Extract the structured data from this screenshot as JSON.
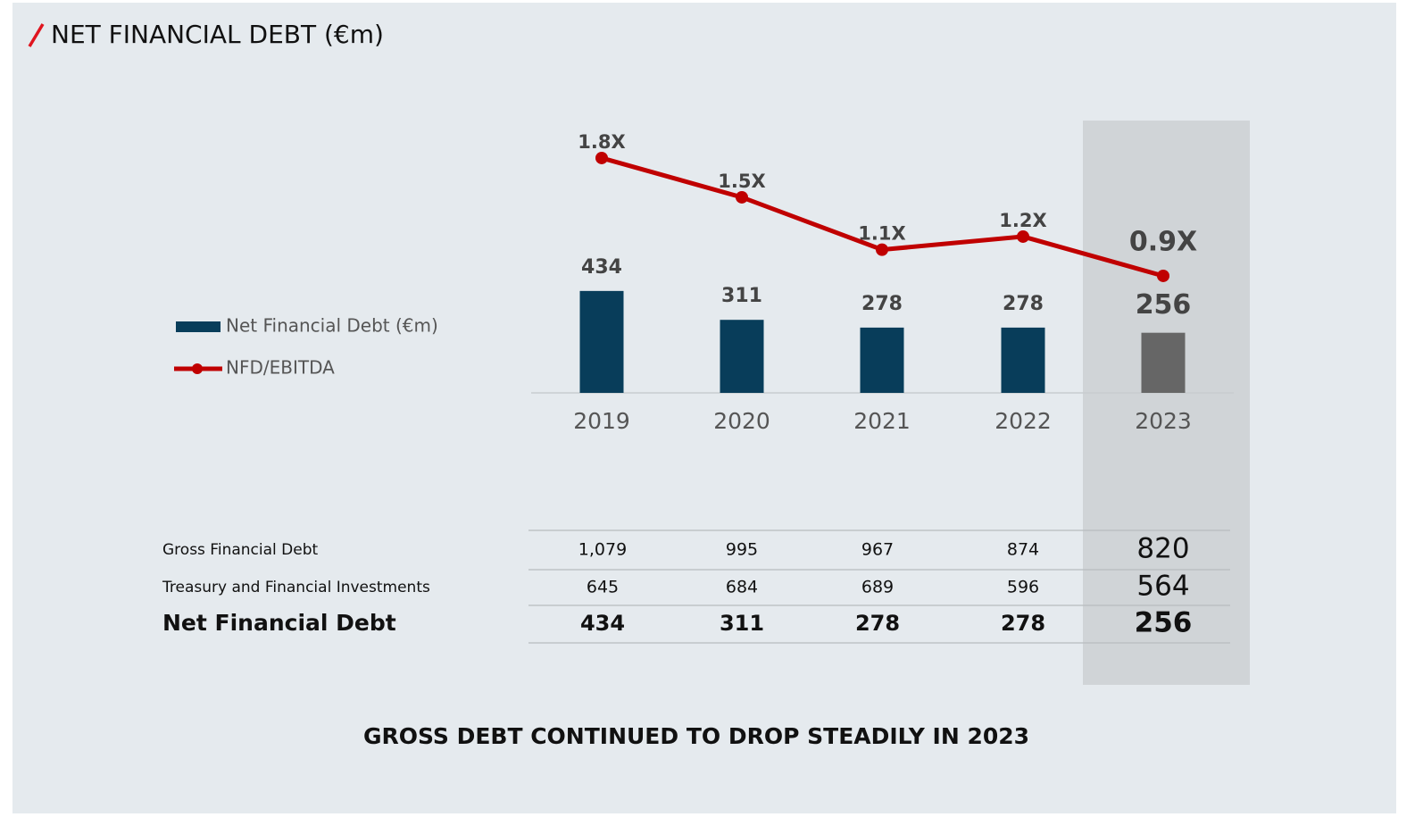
{
  "header": {
    "title": "NET FINANCIAL DEBT (€m)"
  },
  "chart_data": {
    "type": "bar",
    "categories": [
      "2019",
      "2020",
      "2021",
      "2022",
      "2023"
    ],
    "series": [
      {
        "name": "Net Financial Debt (€m)",
        "color": "#083d5a",
        "colors": [
          "#083d5a",
          "#083d5a",
          "#083d5a",
          "#083d5a",
          "#666666"
        ],
        "values": [
          434,
          311,
          278,
          278,
          256
        ]
      },
      {
        "name": "NFD/EBITDA",
        "type": "line",
        "color": "#c00000",
        "values": [
          1.8,
          1.5,
          1.1,
          1.2,
          0.9
        ],
        "value_labels": [
          "1.8X",
          "1.5X",
          "1.1X",
          "1.2X",
          "0.9X"
        ]
      }
    ]
  },
  "table": {
    "rows": [
      {
        "label": "Gross Financial Debt",
        "values": [
          "1,079",
          995,
          967,
          874,
          820
        ]
      },
      {
        "label": "Treasury and Financial Investments",
        "values": [
          645,
          684,
          689,
          596,
          564
        ]
      },
      {
        "label": "Net Financial Debt",
        "values": [
          434,
          311,
          278,
          278,
          256
        ]
      }
    ]
  },
  "footer": {
    "text": "GROSS DEBT CONTINUED TO DROP STEADILY IN 2023"
  }
}
